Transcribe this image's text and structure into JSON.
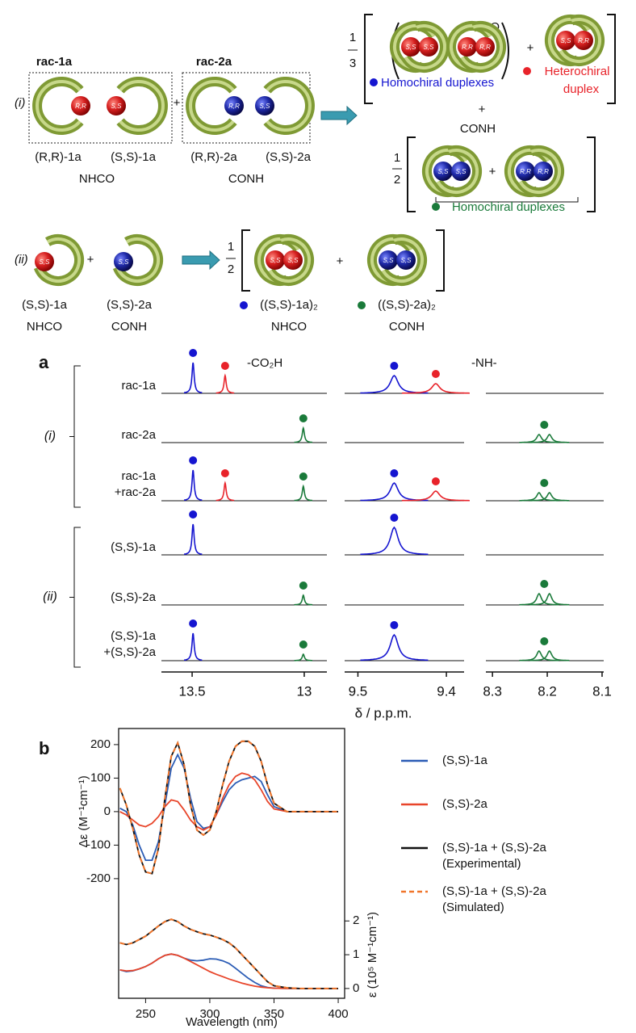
{
  "scheme": {
    "i": {
      "label": "(i)",
      "rac_1a": "rac-1a",
      "rac_2a": "rac-2a",
      "rr_1a": "(R,R)-1a",
      "ss_1a": "(S,S)-1a",
      "rr_2a": "(R,R)-2a",
      "ss_2a": "(S,S)-2a",
      "nhco": "NHCO",
      "conh": "CONH",
      "third": [
        "1",
        "3"
      ],
      "half": [
        "1",
        "2"
      ],
      "homochiral": "Homochiral duplexes",
      "heterochiral": [
        "Heterochiral",
        "duplex"
      ]
    },
    "ii": {
      "label": "(ii)",
      "ss_1a": "(S,S)-1a",
      "ss_2a": "(S,S)-2a",
      "nhco": "NHCO",
      "conh": "CONH",
      "half": [
        "1",
        "2"
      ],
      "dimer_1a": "((S,S)-1a)₂",
      "dimer_2a": "((S,S)-2a)₂"
    },
    "plus": "+",
    "spheres": {
      "rr": "R,R",
      "ss": "S,S"
    }
  },
  "chart_data": [
    {
      "type": "nmr",
      "panel_label": "a",
      "xlabel": "δ / p.p.m.",
      "region_labels": [
        "-CO₂H",
        "-NH-"
      ],
      "segments": [
        {
          "xlim": [
            13.637,
            12.899
          ],
          "xticks": [
            13.5,
            13
          ]
        },
        {
          "xlim": [
            9.515,
            9.38
          ],
          "xticks": [
            9.5,
            9.4
          ]
        },
        {
          "xlim": [
            8.312,
            8.097
          ],
          "xticks": [
            8.3,
            8.2,
            8.1
          ]
        }
      ],
      "groups": [
        {
          "label": "(i)",
          "rows": [
            {
              "label": [
                "rac-1a"
              ],
              "peaks": [
                {
                  "ppm": 13.496,
                  "intensity": 0.95,
                  "color": "#1515d0",
                  "marker": true
                },
                {
                  "ppm": 13.353,
                  "intensity": 0.55,
                  "color": "#e8232a",
                  "marker": true
                },
                {
                  "ppm": 9.459,
                  "intensity": 0.55,
                  "color": "#1515d0",
                  "marker": true
                },
                {
                  "ppm": 9.412,
                  "intensity": 0.3,
                  "color": "#e8232a",
                  "marker": true
                }
              ]
            },
            {
              "label": [
                "rac-2a"
              ],
              "peaks": [
                {
                  "ppm": 13.004,
                  "intensity": 0.45,
                  "color": "#1a7a3a",
                  "marker": true
                },
                {
                  "ppm": 8.215,
                  "intensity": 0.25,
                  "color": "#1a7a3a",
                  "marker": true
                },
                {
                  "ppm": 8.196,
                  "intensity": 0.25,
                  "color": "#1a7a3a",
                  "marker": false
                }
              ]
            },
            {
              "label": [
                "rac-1a",
                "+rac-2a"
              ],
              "peaks": [
                {
                  "ppm": 13.496,
                  "intensity": 0.95,
                  "color": "#1515d0",
                  "marker": true
                },
                {
                  "ppm": 13.353,
                  "intensity": 0.55,
                  "color": "#e8232a",
                  "marker": true
                },
                {
                  "ppm": 13.004,
                  "intensity": 0.45,
                  "color": "#1a7a3a",
                  "marker": true
                },
                {
                  "ppm": 9.459,
                  "intensity": 0.55,
                  "color": "#1515d0",
                  "marker": true
                },
                {
                  "ppm": 9.412,
                  "intensity": 0.3,
                  "color": "#e8232a",
                  "marker": true
                },
                {
                  "ppm": 8.215,
                  "intensity": 0.25,
                  "color": "#1a7a3a",
                  "marker": true
                },
                {
                  "ppm": 8.196,
                  "intensity": 0.25,
                  "color": "#1a7a3a",
                  "marker": false
                }
              ]
            }
          ]
        },
        {
          "label": "(ii)",
          "rows": [
            {
              "label": [
                "(S,S)-1a"
              ],
              "peaks": [
                {
                  "ppm": 13.496,
                  "intensity": 0.95,
                  "color": "#1515d0",
                  "marker": true
                },
                {
                  "ppm": 9.459,
                  "intensity": 0.85,
                  "color": "#1515d0",
                  "marker": true
                }
              ]
            },
            {
              "label": [
                "(S,S)-2a"
              ],
              "peaks": [
                {
                  "ppm": 13.004,
                  "intensity": 0.3,
                  "color": "#1a7a3a",
                  "marker": true
                },
                {
                  "ppm": 8.215,
                  "intensity": 0.35,
                  "color": "#1a7a3a",
                  "marker": true
                },
                {
                  "ppm": 8.196,
                  "intensity": 0.35,
                  "color": "#1a7a3a",
                  "marker": false
                }
              ]
            },
            {
              "label": [
                "(S,S)-1a",
                "+(S,S)-2a"
              ],
              "peaks": [
                {
                  "ppm": 13.496,
                  "intensity": 0.85,
                  "color": "#1515d0",
                  "marker": true
                },
                {
                  "ppm": 13.004,
                  "intensity": 0.2,
                  "color": "#1a7a3a",
                  "marker": true
                },
                {
                  "ppm": 9.459,
                  "intensity": 0.8,
                  "color": "#1515d0",
                  "marker": true
                },
                {
                  "ppm": 8.215,
                  "intensity": 0.3,
                  "color": "#1a7a3a",
                  "marker": true
                },
                {
                  "ppm": 8.196,
                  "intensity": 0.3,
                  "color": "#1a7a3a",
                  "marker": false
                }
              ]
            }
          ]
        }
      ]
    },
    {
      "type": "line",
      "panel_label": "b",
      "xlabel": "Wavelength (nm)",
      "ylabel": "Δε (M⁻¹cm⁻¹)",
      "y2label": "ε (10⁵ M⁻¹cm⁻¹)",
      "x": [
        230,
        235,
        240,
        245,
        250,
        255,
        260,
        265,
        270,
        275,
        280,
        285,
        290,
        295,
        300,
        305,
        310,
        315,
        320,
        325,
        330,
        335,
        340,
        345,
        350,
        360,
        370,
        380,
        390,
        400
      ],
      "xlim": [
        229,
        405
      ],
      "xticks": [
        250,
        300,
        350,
        400
      ],
      "ylim": [
        -557,
        248
      ],
      "yticks": [
        -200,
        -100,
        0,
        100,
        200
      ],
      "y2lim": [
        -0.29,
        7.7
      ],
      "y2ticks": [
        0,
        1,
        2
      ],
      "series": [
        {
          "name": "(S,S)-1a",
          "color": "#2b5cb5",
          "dashed": false,
          "values": [
            10,
            0,
            -40,
            -100,
            -145,
            -145,
            -90,
            20,
            130,
            170,
            130,
            40,
            -30,
            -50,
            -45,
            -10,
            30,
            65,
            85,
            95,
            100,
            105,
            90,
            50,
            15,
            0,
            0,
            0,
            0,
            0
          ],
          "y2_values": [
            0.55,
            0.5,
            0.52,
            0.58,
            0.65,
            0.75,
            0.88,
            0.98,
            1.02,
            0.98,
            0.9,
            0.84,
            0.82,
            0.84,
            0.88,
            0.87,
            0.82,
            0.74,
            0.6,
            0.45,
            0.3,
            0.18,
            0.08,
            0.03,
            0.01,
            0,
            0,
            0,
            0,
            0
          ]
        },
        {
          "name": "(S,S)-2a",
          "color": "#e8452a",
          "dashed": false,
          "values": [
            0,
            -10,
            -25,
            -40,
            -45,
            -35,
            -15,
            15,
            35,
            30,
            5,
            -25,
            -45,
            -55,
            -45,
            -10,
            40,
            80,
            105,
            115,
            110,
            95,
            65,
            30,
            8,
            0,
            0,
            0,
            0,
            0
          ],
          "y2_values": [
            0.55,
            0.52,
            0.53,
            0.58,
            0.65,
            0.75,
            0.88,
            0.98,
            1.02,
            0.98,
            0.9,
            0.8,
            0.7,
            0.6,
            0.5,
            0.42,
            0.35,
            0.28,
            0.22,
            0.16,
            0.11,
            0.07,
            0.04,
            0.02,
            0.01,
            0,
            0,
            0,
            0,
            0
          ]
        },
        {
          "name": "(S,S)-1a + (S,S)-2a",
          "name_note": "(Experimental)",
          "color": "#111111",
          "dashed": false,
          "values": [
            70,
            20,
            -50,
            -130,
            -180,
            -185,
            -110,
            40,
            165,
            205,
            140,
            20,
            -55,
            -70,
            -55,
            0,
            80,
            150,
            195,
            210,
            210,
            195,
            150,
            80,
            25,
            0,
            0,
            0,
            0,
            0
          ],
          "y2_values": [
            1.35,
            1.3,
            1.35,
            1.45,
            1.55,
            1.7,
            1.85,
            1.98,
            2.05,
            1.98,
            1.85,
            1.75,
            1.68,
            1.62,
            1.58,
            1.52,
            1.45,
            1.35,
            1.2,
            1.0,
            0.8,
            0.6,
            0.4,
            0.2,
            0.08,
            0.02,
            0,
            0,
            0,
            0
          ]
        },
        {
          "name": "(S,S)-1a + (S,S)-2a",
          "name_note": "(Simulated)",
          "color": "#f0752a",
          "dashed": true,
          "values": [
            70,
            20,
            -50,
            -130,
            -180,
            -185,
            -110,
            40,
            165,
            205,
            140,
            20,
            -55,
            -70,
            -55,
            0,
            80,
            150,
            195,
            210,
            210,
            195,
            150,
            80,
            25,
            0,
            0,
            0,
            0,
            0
          ],
          "y2_values": [
            1.35,
            1.3,
            1.35,
            1.45,
            1.55,
            1.7,
            1.85,
            1.98,
            2.05,
            1.98,
            1.85,
            1.75,
            1.68,
            1.62,
            1.58,
            1.52,
            1.45,
            1.35,
            1.2,
            1.0,
            0.8,
            0.6,
            0.4,
            0.2,
            0.08,
            0.02,
            0,
            0,
            0,
            0
          ]
        }
      ]
    }
  ]
}
